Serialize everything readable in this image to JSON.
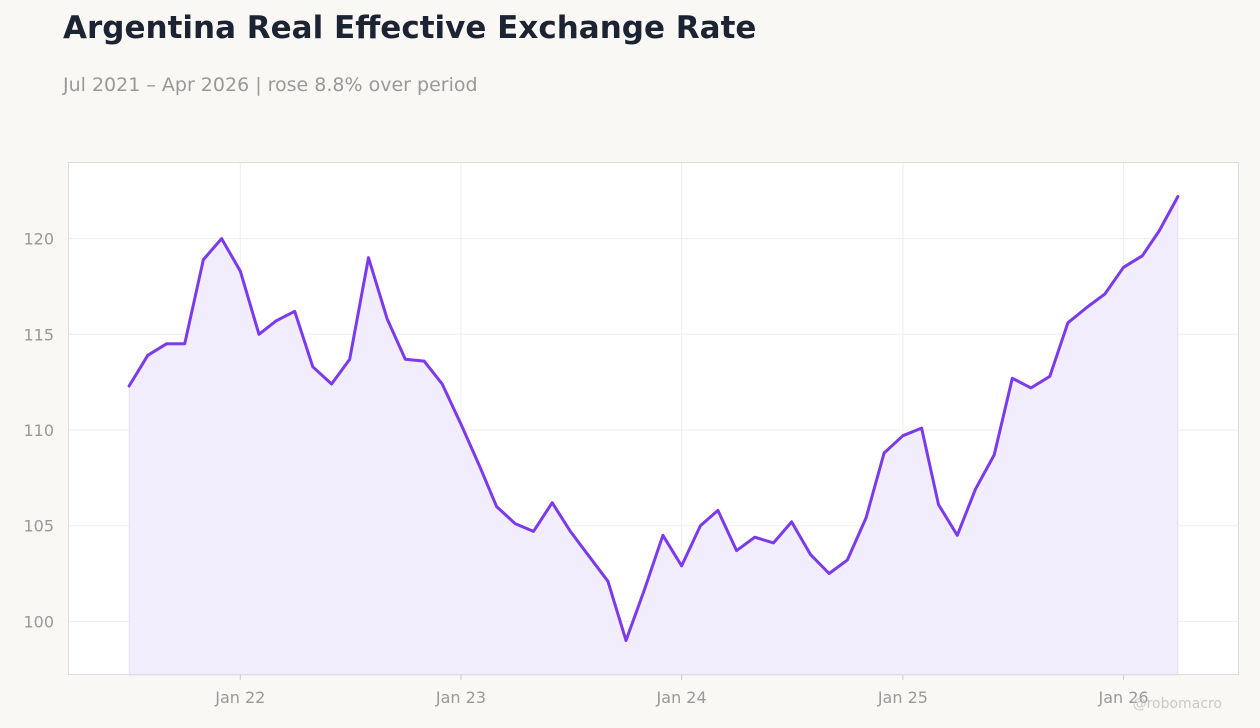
{
  "title": "Argentina Real Effective Exchange Rate",
  "subtitle": "Jul 2021 – Apr 2026 | rose 8.8% over period",
  "watermark": "@robomacro",
  "colors": {
    "line": "#7c3aed",
    "fill": "#f2edfd",
    "grid": "#eeeeee",
    "frame": "#dddddd",
    "background": "#f9f8f5",
    "plot_background": "#ffffff"
  },
  "chart_data": {
    "type": "area",
    "title": "Argentina Real Effective Exchange Rate",
    "subtitle": "Jul 2021 – Apr 2026 | rose 8.8% over period",
    "xlabel": "",
    "ylabel": "",
    "grid": true,
    "ylim": [
      97.2,
      124.0
    ],
    "xlim": [
      "2021-03-22",
      "2026-07-11"
    ],
    "x_ticks": [
      {
        "date": "2022-01-01",
        "label": "Jan 22"
      },
      {
        "date": "2023-01-01",
        "label": "Jan 23"
      },
      {
        "date": "2024-01-01",
        "label": "Jan 24"
      },
      {
        "date": "2025-01-01",
        "label": "Jan 25"
      },
      {
        "date": "2026-01-01",
        "label": "Jan 26"
      }
    ],
    "y_ticks": [
      100,
      105,
      110,
      115,
      120
    ],
    "series": [
      {
        "x": [
          "2021-07-01",
          "2021-08-01",
          "2021-09-01",
          "2021-10-01",
          "2021-11-01",
          "2021-12-01",
          "2022-01-01",
          "2022-02-01",
          "2022-03-01",
          "2022-04-01",
          "2022-05-01",
          "2022-06-01",
          "2022-07-01",
          "2022-08-01",
          "2022-09-01",
          "2022-10-01",
          "2022-11-01",
          "2022-12-01",
          "2023-01-01",
          "2023-02-01",
          "2023-03-01",
          "2023-04-01",
          "2023-05-01",
          "2023-06-01",
          "2023-07-01",
          "2023-08-01",
          "2023-09-01",
          "2023-10-01",
          "2023-11-01",
          "2023-12-01",
          "2024-01-01",
          "2024-02-01",
          "2024-03-01",
          "2024-04-01",
          "2024-05-01",
          "2024-06-01",
          "2024-07-01",
          "2024-08-01",
          "2024-09-01",
          "2024-10-01",
          "2024-11-01",
          "2024-12-01",
          "2025-01-01",
          "2025-02-01",
          "2025-03-01",
          "2025-04-01",
          "2025-05-01",
          "2025-06-01",
          "2025-07-01",
          "2025-08-01",
          "2025-09-01",
          "2025-10-01",
          "2025-11-01",
          "2025-12-01",
          "2026-01-01",
          "2026-02-01",
          "2026-03-01",
          "2026-04-01"
        ],
        "values": [
          112.3,
          113.9,
          114.5,
          114.5,
          118.9,
          120.0,
          118.3,
          115.0,
          115.7,
          116.2,
          113.3,
          112.4,
          113.7,
          119.0,
          115.8,
          113.7,
          113.6,
          112.4,
          110.3,
          108.1,
          106.0,
          105.1,
          104.7,
          106.2,
          104.7,
          103.4,
          102.1,
          99.0,
          101.7,
          104.5,
          102.9,
          105.0,
          105.8,
          103.7,
          104.4,
          104.1,
          105.2,
          103.5,
          102.5,
          103.2,
          105.4,
          108.8,
          109.7,
          110.1,
          106.1,
          104.5,
          106.9,
          108.7,
          112.7,
          112.2,
          112.8,
          115.6,
          116.4,
          117.1,
          118.5,
          119.1,
          120.4,
          122.2
        ]
      }
    ]
  }
}
